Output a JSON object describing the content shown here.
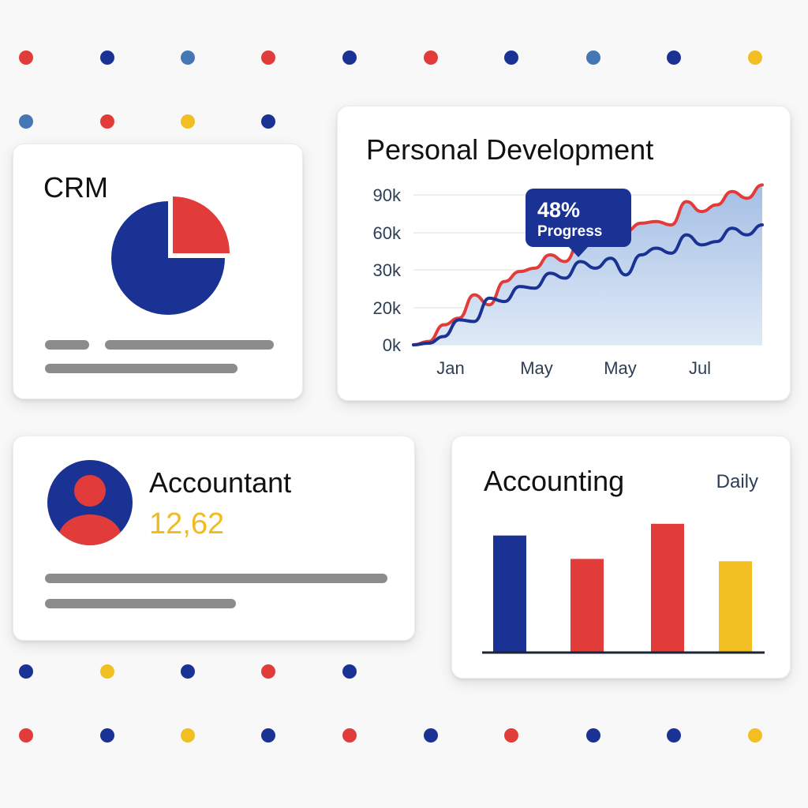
{
  "colors": {
    "blue": "#1a3294",
    "red": "#e23c3a",
    "yellow": "#f2bf22",
    "light_blue": "#4577b5",
    "placeholder_gray": "#8c8c8c"
  },
  "background_dots": [
    "red",
    "blue",
    "light_blue",
    "red",
    "blue",
    "red",
    "blue",
    "light_blue",
    "blue",
    "yellow",
    "light_blue",
    "red",
    "yellow",
    "blue",
    "blue",
    "yellow",
    "blue",
    "red",
    "blue",
    "red",
    "blue",
    "yellow",
    "blue",
    "red",
    "blue",
    "red",
    "blue",
    "blue",
    "yellow"
  ],
  "crm_card": {
    "title": "CRM",
    "pie_icon": "pie-chart-icon",
    "chart_data": {
      "type": "pie",
      "title": "",
      "slices": [
        {
          "label": "",
          "value": 75,
          "color": "#1a3294"
        },
        {
          "label": "",
          "value": 25,
          "color": "#e23c3a"
        }
      ]
    }
  },
  "personal_development_card": {
    "title": "Personal Development",
    "tooltip": {
      "value": "48%",
      "label": "Progress"
    },
    "chart_data": {
      "type": "area",
      "title": "Personal Development",
      "xlabel": "",
      "ylabel": "",
      "y_tick_labels": [
        "90k",
        "60k",
        "30k",
        "20k",
        "0k"
      ],
      "x_tick_labels": [
        "Jan",
        "May",
        "May",
        "Jul"
      ],
      "ylim": [
        0,
        90000
      ],
      "grid": true,
      "series": [
        {
          "color": "#e23c3a",
          "values": [
            0,
            2000,
            12000,
            16000,
            30000,
            24000,
            38000,
            44000,
            46000,
            54000,
            50000,
            62000,
            60000,
            60000,
            68000,
            73000,
            74000,
            72000,
            86000,
            80000,
            84000,
            92000,
            88000,
            96000
          ]
        },
        {
          "color": "#1a3294",
          "values": [
            0,
            1000,
            5000,
            15000,
            14000,
            28000,
            26000,
            35000,
            34000,
            43000,
            40000,
            50000,
            46000,
            52000,
            42000,
            54000,
            58000,
            55000,
            66000,
            60000,
            62000,
            70000,
            66000,
            72000
          ]
        }
      ]
    }
  },
  "accountant_card": {
    "avatar_icon": "user-avatar-icon",
    "title": "Accountant",
    "value": "12,62"
  },
  "accounting_card": {
    "title": "Accounting",
    "period": "Daily",
    "chart_data": {
      "type": "bar",
      "title": "Accounting",
      "categories": [
        "",
        "",
        "",
        ""
      ],
      "values": [
        100,
        80,
        110,
        78
      ],
      "colors": [
        "#1a3294",
        "#e23c3a",
        "#e23c3a",
        "#f2bf22"
      ],
      "ylim": [
        0,
        120
      ],
      "xlabel": "",
      "ylabel": ""
    }
  }
}
